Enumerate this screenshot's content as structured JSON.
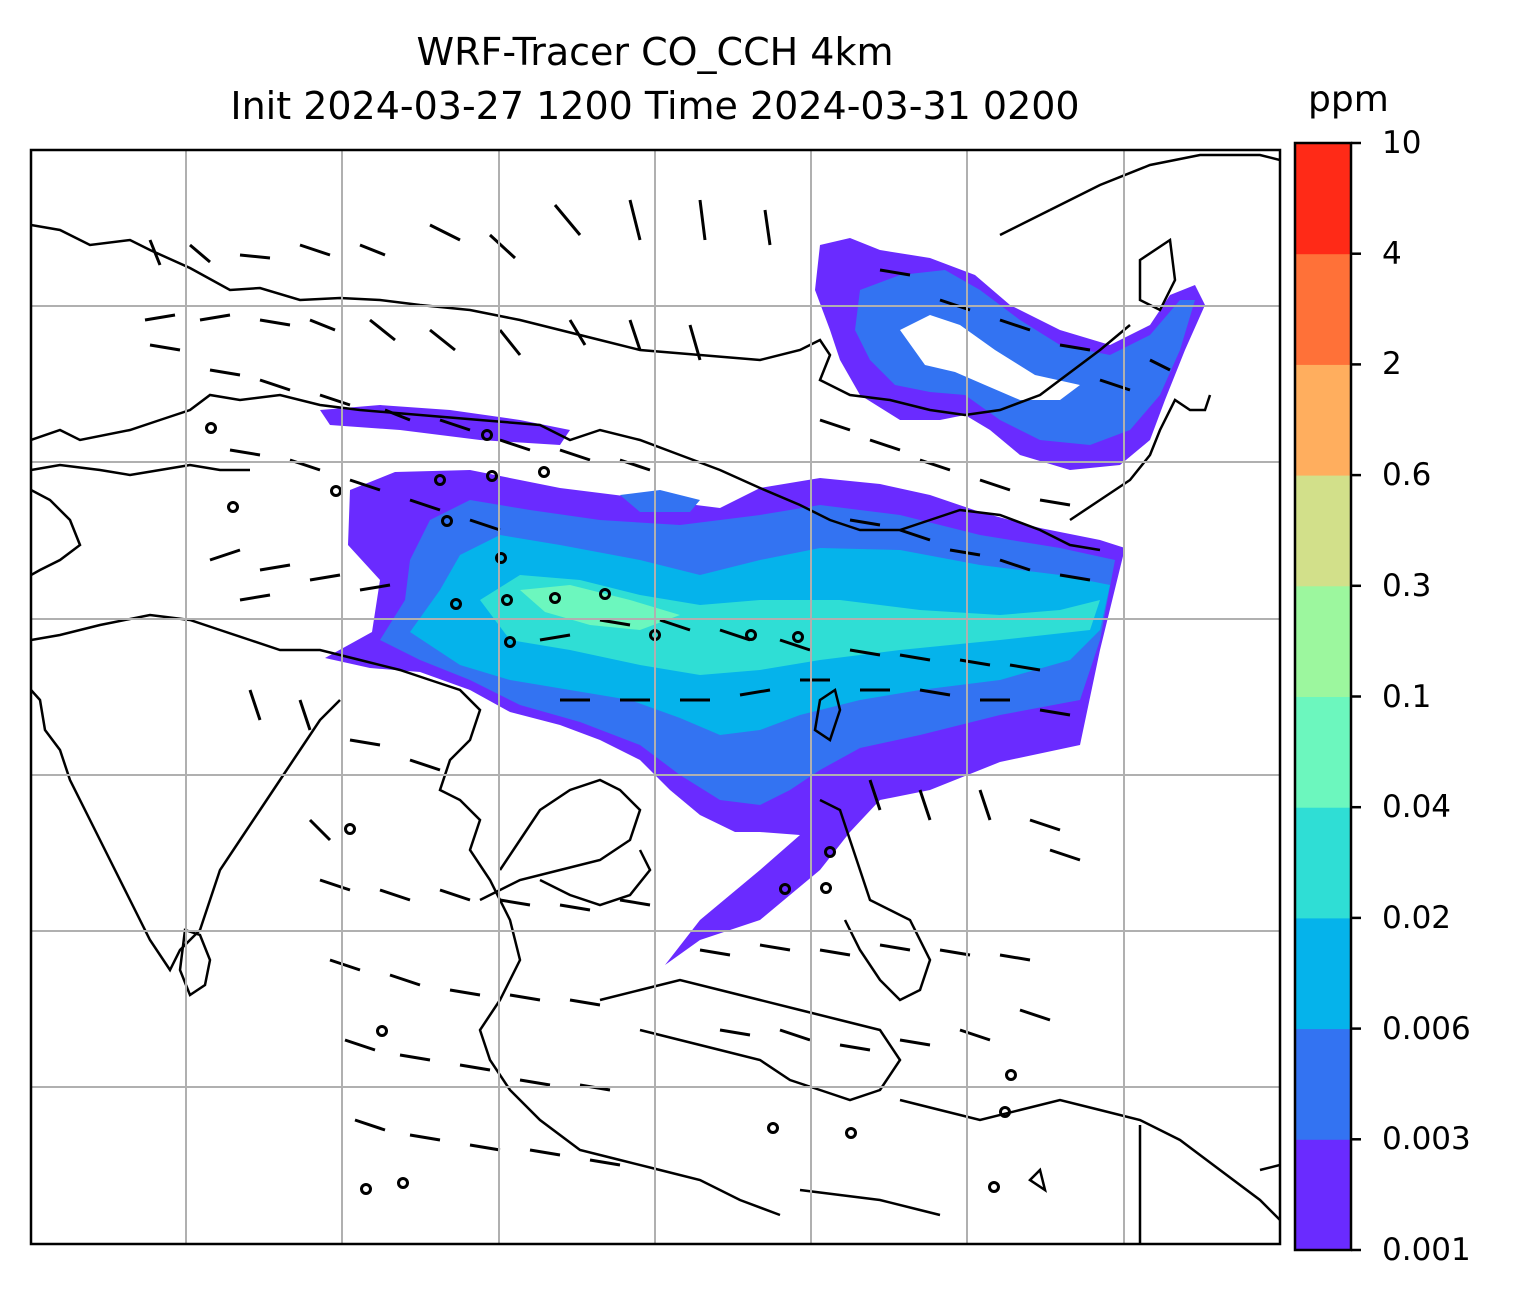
{
  "title": {
    "line1": "WRF-Tracer CO_CCH 4km",
    "line2": "Init 2024-03-27 1200 Time 2024-03-31 0200"
  },
  "colorbar": {
    "unit": "ppm",
    "ticks": [
      "0.001",
      "0.003",
      "0.006",
      "0.02",
      "0.04",
      "0.1",
      "0.3",
      "0.6",
      "2",
      "4",
      "10"
    ],
    "colors": [
      "#6a2bff",
      "#3373f2",
      "#05b3eb",
      "#2fded5",
      "#6cf7be",
      "#9cf79e",
      "#d2e08a",
      "#ffae5e",
      "#ff7138",
      "#ff2a17"
    ]
  },
  "map": {
    "gridlines": true,
    "gridline_color": "#b0b0b0",
    "coastline_color": "#000000",
    "plume_description_colors": [
      "#6a2bff",
      "#3373f2",
      "#05b3eb",
      "#2fded5",
      "#6cf7be"
    ]
  }
}
